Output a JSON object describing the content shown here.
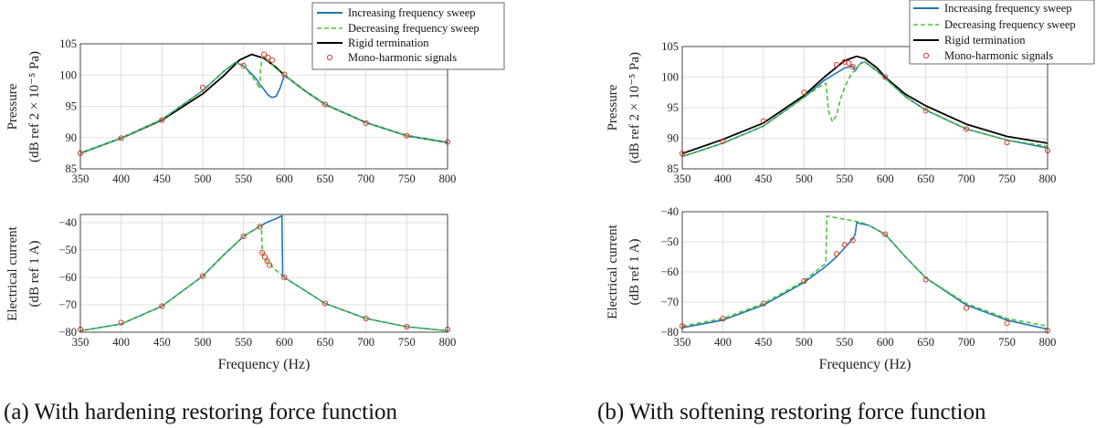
{
  "captions": {
    "a": "(a) With hardening restoring force function",
    "b": "(b) With softening restoring force function"
  },
  "legend": {
    "increasing": "Increasing frequency sweep",
    "decreasing": "Decreasing frequency sweep",
    "rigid": "Rigid termination",
    "mono": "Mono-harmonic signals"
  },
  "colors": {
    "increasing": "#1f77b4",
    "decreasing": "#4cc43b",
    "rigid": "#000000",
    "mono": "#e03a2a"
  },
  "axis_labels": {
    "pressure_line1": "Pressure",
    "pressure_line2": "(dB ref 2 × 10⁻⁵ Pa)",
    "current_line1": "Electrical current",
    "current_line2": "(dB ref 1 A)",
    "frequency": "Frequency (Hz)"
  },
  "chart_data": [
    {
      "id": "a-pressure",
      "type": "line",
      "xlim": [
        350,
        800
      ],
      "ylim": [
        85,
        105
      ],
      "xticks": [
        350,
        400,
        450,
        500,
        550,
        600,
        650,
        700,
        750,
        800
      ],
      "yticks": [
        85,
        90,
        95,
        100,
        105
      ],
      "grid": true,
      "series": [
        {
          "key": "rigid",
          "x": [
            350,
            400,
            450,
            500,
            525,
            545,
            560,
            575,
            590,
            600,
            625,
            650,
            700,
            750,
            800
          ],
          "y": [
            87.5,
            89.9,
            92.8,
            97.0,
            99.8,
            102.4,
            103.3,
            102.7,
            101.2,
            100.0,
            97.5,
            95.3,
            92.4,
            90.3,
            89.2
          ]
        },
        {
          "key": "increasing",
          "x": [
            350,
            400,
            450,
            500,
            525,
            540,
            550,
            565,
            570,
            575,
            580,
            585,
            590,
            595,
            600,
            625,
            650,
            700,
            750,
            800
          ],
          "y": [
            87.5,
            89.9,
            92.9,
            97.5,
            100.5,
            102.0,
            101.5,
            99.5,
            98.5,
            97.7,
            96.8,
            96.4,
            96.6,
            98.0,
            100.0,
            97.5,
            95.3,
            92.4,
            90.3,
            89.2
          ]
        },
        {
          "key": "decreasing",
          "x": [
            350,
            400,
            450,
            500,
            525,
            540,
            550,
            565,
            570,
            571,
            573,
            580,
            590,
            600,
            625,
            650,
            700,
            750,
            800
          ],
          "y": [
            87.5,
            89.9,
            92.9,
            97.5,
            100.5,
            102.0,
            101.5,
            99.0,
            97.8,
            101.0,
            103.0,
            102.3,
            101.0,
            100.0,
            97.5,
            95.3,
            92.4,
            90.3,
            89.2
          ]
        }
      ],
      "points": {
        "key": "mono",
        "x": [
          350,
          400,
          450,
          500,
          550,
          575,
          580,
          585,
          600,
          650,
          700,
          750,
          800
        ],
        "y": [
          87.5,
          89.9,
          92.8,
          98.0,
          101.5,
          103.3,
          102.8,
          102.4,
          100.1,
          95.3,
          92.3,
          90.3,
          89.3
        ]
      }
    },
    {
      "id": "a-current",
      "type": "line",
      "xlim": [
        350,
        800
      ],
      "ylim": [
        -80,
        -37
      ],
      "xticks": [
        350,
        400,
        450,
        500,
        550,
        600,
        650,
        700,
        750,
        800
      ],
      "yticks": [
        -80,
        -70,
        -60,
        -50,
        -40
      ],
      "grid": true,
      "series": [
        {
          "key": "increasing",
          "x": [
            350,
            400,
            450,
            500,
            525,
            550,
            570,
            580,
            590,
            597,
            598,
            600,
            650,
            700,
            750,
            800
          ],
          "y": [
            -79.5,
            -77.0,
            -70.5,
            -59.5,
            -52.0,
            -45.0,
            -41.3,
            -39.7,
            -38.5,
            -37.5,
            -59.5,
            -60.0,
            -69.5,
            -75.0,
            -78.0,
            -79.5
          ]
        },
        {
          "key": "decreasing",
          "x": [
            350,
            400,
            450,
            500,
            525,
            550,
            570,
            572,
            573,
            580,
            590,
            600,
            650,
            700,
            750,
            800
          ],
          "y": [
            -79.5,
            -77.0,
            -70.5,
            -59.5,
            -52.0,
            -45.0,
            -41.3,
            -41.0,
            -51.0,
            -54.5,
            -57.5,
            -60.0,
            -69.5,
            -75.0,
            -78.0,
            -79.5
          ]
        }
      ],
      "points": {
        "key": "mono",
        "x": [
          350,
          400,
          450,
          500,
          550,
          570,
          573,
          576,
          579,
          582,
          600,
          650,
          700,
          750,
          800
        ],
        "y": [
          -79.0,
          -76.5,
          -70.5,
          -59.5,
          -45.0,
          -41.5,
          -51.0,
          -52.5,
          -54.0,
          -55.5,
          -60.0,
          -69.5,
          -75.0,
          -78.0,
          -79.0
        ]
      }
    },
    {
      "id": "b-pressure",
      "type": "line",
      "xlim": [
        350,
        800
      ],
      "ylim": [
        85,
        105
      ],
      "xticks": [
        350,
        400,
        450,
        500,
        550,
        600,
        650,
        700,
        750,
        800
      ],
      "yticks": [
        85,
        90,
        95,
        100,
        105
      ],
      "grid": true,
      "series": [
        {
          "key": "rigid",
          "x": [
            350,
            400,
            450,
            500,
            525,
            550,
            565,
            575,
            590,
            600,
            625,
            650,
            700,
            750,
            800
          ],
          "y": [
            87.5,
            89.8,
            92.5,
            97.0,
            100.0,
            102.7,
            103.4,
            103.0,
            101.5,
            100.0,
            97.2,
            95.3,
            92.3,
            90.3,
            89.2
          ]
        },
        {
          "key": "increasing",
          "x": [
            350,
            400,
            450,
            500,
            525,
            550,
            560,
            563,
            565,
            570,
            575,
            580,
            590,
            600,
            625,
            650,
            700,
            750,
            800
          ],
          "y": [
            87.0,
            89.2,
            92.0,
            96.7,
            99.5,
            101.5,
            101.8,
            101.0,
            101.5,
            102.3,
            102.5,
            102.0,
            101.0,
            99.8,
            96.8,
            94.6,
            91.5,
            89.7,
            88.4
          ]
        },
        {
          "key": "decreasing",
          "x": [
            350,
            400,
            450,
            500,
            520,
            527,
            530,
            535,
            540,
            545,
            550,
            555,
            560,
            563,
            565,
            570,
            575,
            580,
            590,
            600,
            625,
            650,
            700,
            750,
            800
          ],
          "y": [
            87.0,
            89.2,
            92.0,
            96.7,
            98.5,
            99.0,
            94.5,
            92.7,
            93.8,
            96.5,
            98.3,
            99.7,
            100.8,
            101.0,
            101.5,
            102.3,
            102.5,
            102.0,
            101.0,
            99.8,
            96.8,
            94.6,
            91.5,
            89.7,
            88.7
          ]
        }
      ],
      "points": {
        "key": "mono",
        "x": [
          350,
          400,
          450,
          500,
          540,
          550,
          555,
          560,
          600,
          650,
          700,
          750,
          800
        ],
        "y": [
          87.5,
          89.5,
          92.8,
          97.5,
          102.0,
          102.5,
          102.3,
          101.7,
          100.0,
          94.5,
          91.5,
          89.3,
          88.0
        ]
      }
    },
    {
      "id": "b-current",
      "type": "line",
      "xlim": [
        350,
        800
      ],
      "ylim": [
        -80,
        -40
      ],
      "xticks": [
        350,
        400,
        450,
        500,
        550,
        600,
        650,
        700,
        750,
        800
      ],
      "yticks": [
        -80,
        -70,
        -60,
        -50,
        -40
      ],
      "grid": true,
      "series": [
        {
          "key": "increasing",
          "x": [
            350,
            400,
            450,
            500,
            525,
            540,
            550,
            560,
            563,
            565,
            570,
            580,
            600,
            625,
            650,
            700,
            750,
            800
          ],
          "y": [
            -78.5,
            -76.0,
            -71.0,
            -63.5,
            -58.5,
            -55.0,
            -52.0,
            -49.0,
            -47.5,
            -43.5,
            -44.0,
            -44.5,
            -47.5,
            -55.0,
            -62.0,
            -71.0,
            -76.0,
            -79.0
          ]
        },
        {
          "key": "decreasing",
          "x": [
            350,
            400,
            450,
            500,
            525,
            527,
            528,
            530,
            550,
            570,
            580,
            600,
            625,
            650,
            700,
            750,
            800
          ],
          "y": [
            -78.0,
            -75.5,
            -70.5,
            -63.0,
            -57.5,
            -56.5,
            -41.5,
            -41.5,
            -42.5,
            -43.5,
            -44.5,
            -47.5,
            -55.0,
            -62.0,
            -70.5,
            -75.5,
            -78.0
          ]
        }
      ],
      "points": {
        "key": "mono",
        "x": [
          350,
          400,
          450,
          500,
          540,
          550,
          560,
          600,
          650,
          700,
          750,
          800
        ],
        "y": [
          -78.0,
          -75.5,
          -70.5,
          -63.0,
          -54.0,
          -51.0,
          -49.5,
          -47.5,
          -62.5,
          -72.0,
          -77.0,
          -79.5
        ]
      }
    }
  ]
}
